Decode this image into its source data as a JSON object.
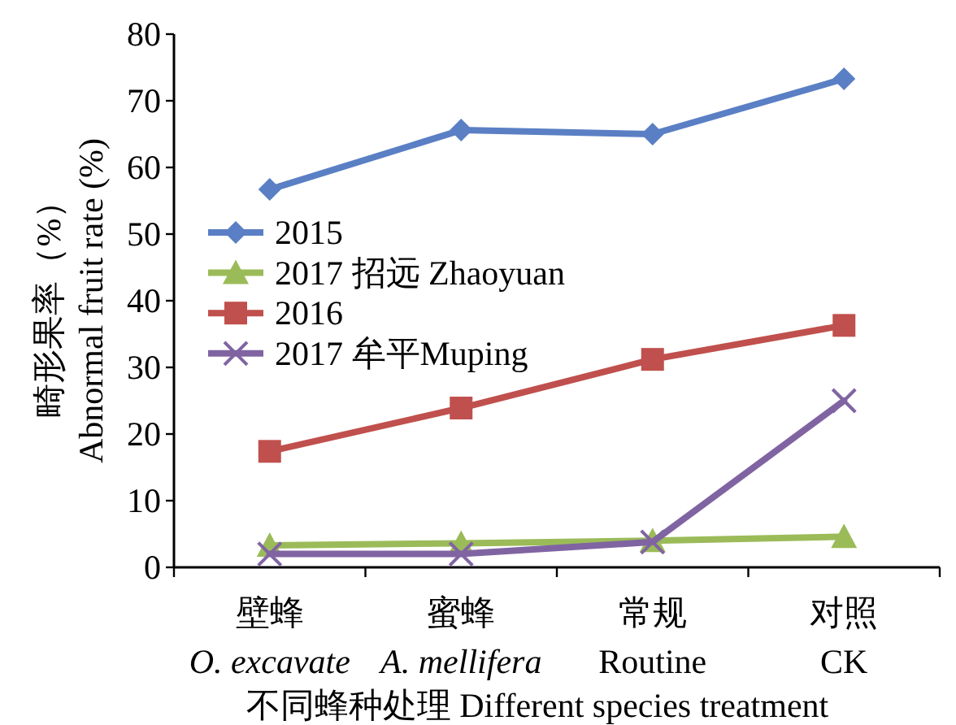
{
  "chart_data": {
    "type": "line",
    "xlabel": "不同蜂种处理 Different species treatment",
    "ylabel": "畸形果率（%）\nAbnormal fruit rate (%)",
    "categories": [
      "壁蜂\n*O. excavate*",
      "蜜蜂\n*A. mellifera*",
      "常规\nRoutine",
      "对照\nCK"
    ],
    "series": [
      {
        "name": "2015",
        "color": "#5a7fc4",
        "marker": "diamond",
        "values": [
          56.7,
          65.6,
          65.0,
          73.3
        ]
      },
      {
        "name": "2017 招远 Zhaoyuan",
        "color": "#9bbb59",
        "marker": "triangle",
        "values": [
          3.3,
          3.6,
          4.0,
          4.6
        ]
      },
      {
        "name": "2016",
        "color": "#c0504d",
        "marker": "square",
        "values": [
          17.4,
          23.9,
          31.2,
          36.3
        ]
      },
      {
        "name": "2017 牟平Muping",
        "color": "#8064a2",
        "marker": "cross",
        "values": [
          2.0,
          2.0,
          3.8,
          25.0
        ]
      }
    ],
    "ylim": [
      0,
      80
    ],
    "yticks": [
      0,
      10,
      20,
      30,
      40,
      50,
      60,
      70,
      80
    ],
    "grid": false,
    "legend": "left"
  }
}
